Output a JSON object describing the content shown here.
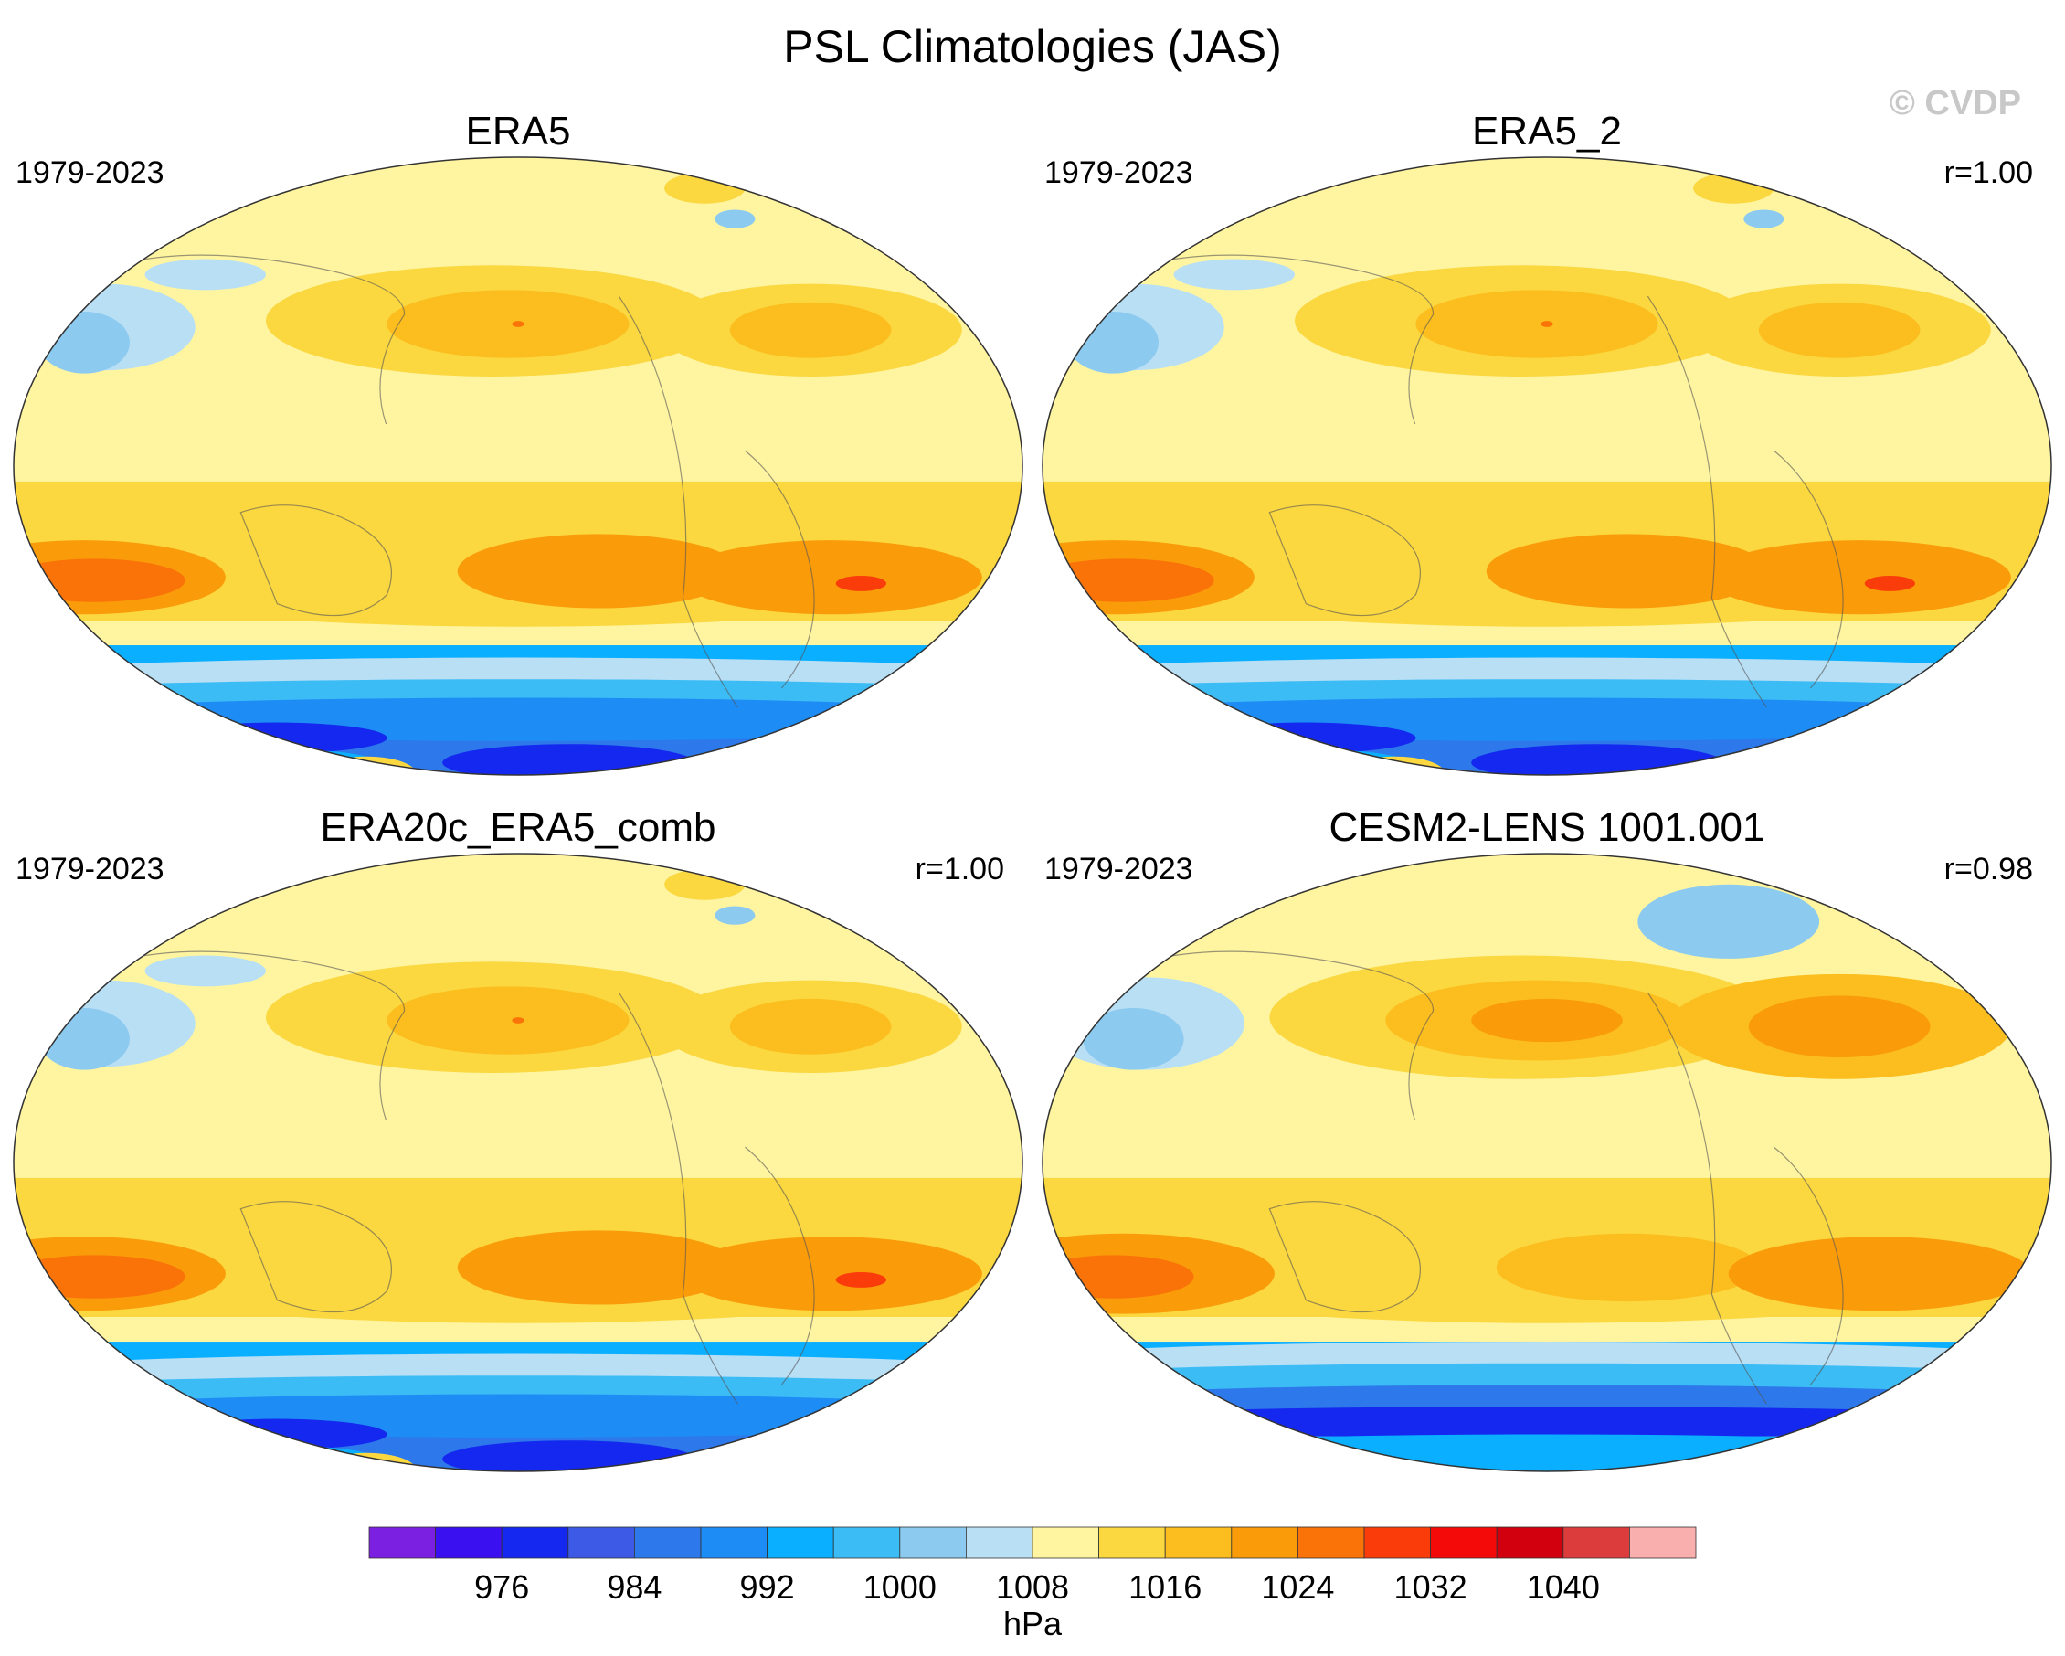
{
  "figure": {
    "title": "PSL Climatologies (JAS)",
    "copyright": "© CVDP"
  },
  "chart_data": {
    "type": "heatmap",
    "projection": "Robinson (Pacific-centered)",
    "variable": "Sea level pressure",
    "units": "hPa",
    "panels": [
      {
        "title": "ERA5",
        "years": "1979-2023",
        "corr": ""
      },
      {
        "title": "ERA5_2",
        "years": "1979-2023",
        "corr": "r=1.00"
      },
      {
        "title": "ERA20c_ERA5_comb",
        "years": "1979-2023",
        "corr": "r=1.00"
      },
      {
        "title": "CESM2-LENS 1001.001",
        "years": "1979-2023",
        "corr": "r=0.98"
      }
    ],
    "colorbar": {
      "label": "hPa",
      "tick_labels": [
        "976",
        "984",
        "992",
        "1000",
        "1008",
        "1016",
        "1024",
        "1032",
        "1040"
      ],
      "levels": [
        972,
        976,
        980,
        984,
        988,
        992,
        996,
        1000,
        1004,
        1008,
        1012,
        1016,
        1020,
        1024,
        1028,
        1032,
        1036,
        1040,
        1044
      ],
      "colors": [
        "#7b1fe0",
        "#3a10f0",
        "#1428f0",
        "#3c5ae6",
        "#2d78ea",
        "#1e8cf5",
        "#0aafff",
        "#3cbcf5",
        "#8ccaf0",
        "#b9dff5",
        "#fff5a0",
        "#fbd740",
        "#fbbe1e",
        "#fa9b0a",
        "#fa7308",
        "#fa3c0a",
        "#f50a0a",
        "#d2000f",
        "#dc3c3c",
        "#faafaf"
      ]
    }
  }
}
